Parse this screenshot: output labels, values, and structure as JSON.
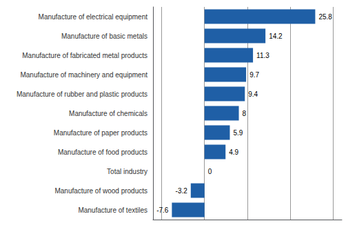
{
  "chart_data": {
    "type": "bar",
    "orientation": "horizontal",
    "categories": [
      "Manufacture of electrical equipment",
      "Manufacture of basic metals",
      "Manufacture of fabricated metal products",
      "Manufacture of machinery and equipment",
      "Manufacture of rubber and plastic products",
      "Manufacture of chemicals",
      "Manufacture of paper products",
      "Manufacture of food products",
      "Total industry",
      "Manufacture of wood products",
      "Manufacture of textiles"
    ],
    "values": [
      25.8,
      14.2,
      11.3,
      9.7,
      9.4,
      8.0,
      5.9,
      4.9,
      0.0,
      -3.2,
      -7.6
    ],
    "color": "#1F5FA6",
    "xlim": [
      -12,
      32
    ],
    "xticks": [
      -10,
      0,
      10,
      20,
      30
    ],
    "grid": true,
    "data_labels": true,
    "tick_labels": "y"
  }
}
